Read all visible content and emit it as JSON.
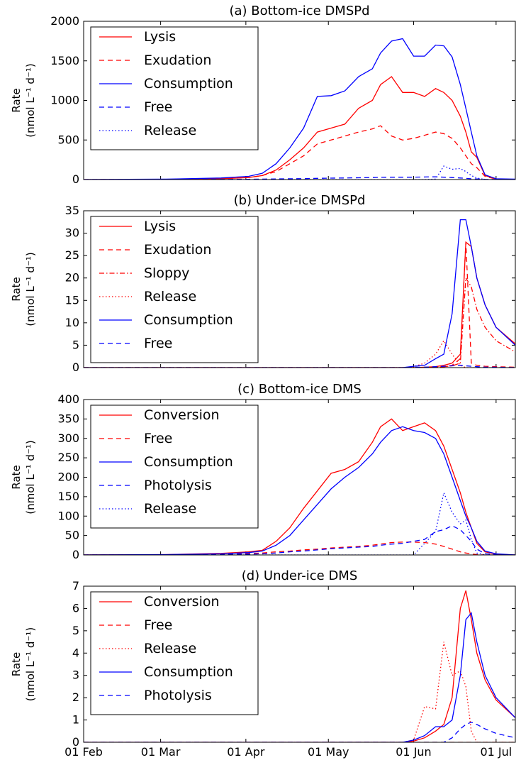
{
  "chart_data": [
    {
      "type": "line",
      "title": "(a) Bottom-ice DMSPd",
      "ylabel": [
        "Rate",
        "(nmol L⁻¹ d⁻¹)"
      ],
      "x": [
        0,
        30,
        50,
        60,
        65,
        70,
        75,
        80,
        85,
        90,
        95,
        100,
        105,
        108,
        112,
        116,
        120,
        124,
        128,
        131,
        134,
        137,
        139,
        141,
        143,
        146,
        150,
        157
      ],
      "xlim": [
        0,
        157
      ],
      "xticks": [
        0,
        28,
        59,
        89,
        120,
        150
      ],
      "ylim": [
        0,
        2000
      ],
      "yticks": [
        0,
        500,
        1000,
        1500,
        2000
      ],
      "legend": "upper left",
      "series": [
        {
          "name": "Lysis",
          "color": "#ff0000",
          "style": "solid",
          "values": [
            0,
            2,
            10,
            25,
            50,
            120,
            250,
            400,
            600,
            650,
            700,
            900,
            1000,
            1200,
            1300,
            1100,
            1100,
            1050,
            1150,
            1100,
            1000,
            800,
            600,
            350,
            280,
            50,
            5,
            2
          ]
        },
        {
          "name": "Exudation",
          "color": "#ff0000",
          "style": "dashed",
          "values": [
            0,
            2,
            10,
            25,
            50,
            100,
            200,
            300,
            450,
            500,
            550,
            600,
            640,
            680,
            550,
            500,
            520,
            560,
            600,
            580,
            520,
            400,
            300,
            200,
            150,
            40,
            5,
            2
          ]
        },
        {
          "name": "Consumption",
          "color": "#0000ff",
          "style": "solid",
          "values": [
            0,
            5,
            20,
            40,
            80,
            200,
            400,
            650,
            1050,
            1060,
            1120,
            1300,
            1400,
            1600,
            1750,
            1780,
            1560,
            1560,
            1700,
            1690,
            1550,
            1200,
            900,
            600,
            300,
            60,
            10,
            5
          ]
        },
        {
          "name": "Free",
          "color": "#0000ff",
          "style": "dashed",
          "values": [
            0,
            0,
            2,
            4,
            5,
            8,
            10,
            12,
            15,
            18,
            20,
            22,
            25,
            28,
            30,
            30,
            30,
            32,
            35,
            30,
            25,
            20,
            15,
            10,
            8,
            3,
            1,
            0
          ]
        },
        {
          "name": "Release",
          "color": "#0000ff",
          "style": "dotted",
          "values": [
            0,
            0,
            0,
            0,
            0,
            0,
            0,
            0,
            0,
            0,
            0,
            0,
            0,
            0,
            0,
            0,
            0,
            0,
            5,
            170,
            130,
            140,
            100,
            50,
            20,
            0,
            0,
            0
          ]
        }
      ]
    },
    {
      "type": "line",
      "title": "(b) Under-ice DMSPd",
      "ylabel": [
        "Rate",
        "(nmol L⁻¹ d⁻¹)"
      ],
      "x": [
        0,
        30,
        50,
        60,
        65,
        70,
        75,
        80,
        85,
        90,
        95,
        100,
        105,
        108,
        112,
        116,
        120,
        124,
        128,
        131,
        134,
        137,
        139,
        141,
        143,
        146,
        150,
        157
      ],
      "xlim": [
        0,
        157
      ],
      "xticks": [
        0,
        28,
        59,
        89,
        120,
        150
      ],
      "ylim": [
        0,
        35
      ],
      "yticks": [
        0,
        5,
        10,
        15,
        20,
        25,
        30,
        35
      ],
      "legend": "upper left",
      "series": [
        {
          "name": "Lysis",
          "color": "#ff0000",
          "style": "solid",
          "values": [
            0,
            0,
            0,
            0,
            0,
            0,
            0,
            0,
            0,
            0,
            0,
            0,
            0,
            0,
            0,
            0,
            0,
            0.1,
            0.2,
            0.5,
            1,
            3,
            28,
            27,
            20,
            14,
            9,
            5.3
          ]
        },
        {
          "name": "Exudation",
          "color": "#ff0000",
          "style": "dashed",
          "values": [
            0,
            0,
            0,
            0,
            0,
            0,
            0,
            0,
            0,
            0,
            0,
            0,
            0,
            0,
            0,
            0,
            0,
            0,
            0.1,
            0.2,
            0.5,
            2,
            28,
            1,
            0.5,
            0.3,
            0.2,
            0.1
          ]
        },
        {
          "name": "Sloppy",
          "color": "#ff0000",
          "style": "dashdot",
          "values": [
            0,
            0,
            0,
            0,
            0,
            0,
            0,
            0,
            0,
            0,
            0,
            0,
            0,
            0,
            0,
            0,
            0,
            0,
            0.1,
            0.2,
            0.4,
            1,
            20,
            18,
            13,
            9,
            6,
            3.5
          ]
        },
        {
          "name": "Release",
          "color": "#ff0000",
          "style": "dotted",
          "values": [
            0,
            0,
            0,
            0,
            0,
            0,
            0,
            0,
            0,
            0,
            0,
            0,
            0,
            0,
            0,
            0,
            0.2,
            1,
            3,
            6,
            3,
            0.5,
            0,
            0,
            0,
            0,
            0,
            0
          ]
        },
        {
          "name": "Consumption",
          "color": "#0000ff",
          "style": "solid",
          "values": [
            0,
            0,
            0,
            0,
            0,
            0,
            0,
            0,
            0,
            0,
            0,
            0,
            0,
            0,
            0,
            0,
            0.3,
            0.5,
            2,
            3,
            12,
            33,
            33,
            27,
            20,
            14,
            9,
            5
          ]
        },
        {
          "name": "Free",
          "color": "#0000ff",
          "style": "dashed",
          "values": [
            0,
            0,
            0,
            0,
            0,
            0,
            0,
            0,
            0,
            0,
            0,
            0,
            0,
            0,
            0,
            0,
            0.1,
            0.1,
            0.2,
            0.3,
            0.4,
            0.5,
            0.4,
            0.3,
            0.2,
            0.1,
            0.1,
            0
          ]
        }
      ]
    },
    {
      "type": "line",
      "title": "(c) Bottom-ice DMS",
      "ylabel": [
        "Rate",
        "(nmol L⁻¹ d⁻¹)"
      ],
      "x": [
        0,
        30,
        50,
        60,
        65,
        70,
        75,
        80,
        85,
        90,
        95,
        100,
        105,
        108,
        112,
        116,
        120,
        124,
        128,
        131,
        134,
        137,
        139,
        141,
        143,
        146,
        150,
        157
      ],
      "xlim": [
        0,
        157
      ],
      "xticks": [
        0,
        28,
        59,
        89,
        120,
        150
      ],
      "ylim": [
        0,
        400
      ],
      "yticks": [
        0,
        50,
        100,
        150,
        200,
        250,
        300,
        350,
        400
      ],
      "legend": "upper left",
      "series": [
        {
          "name": "Conversion",
          "color": "#ff0000",
          "style": "solid",
          "values": [
            0,
            1,
            4,
            8,
            12,
            35,
            70,
            120,
            165,
            210,
            220,
            240,
            290,
            330,
            350,
            320,
            330,
            340,
            320,
            280,
            220,
            160,
            110,
            70,
            30,
            8,
            2,
            0
          ]
        },
        {
          "name": "Free",
          "color": "#ff0000",
          "style": "dashed",
          "values": [
            0,
            0,
            2,
            4,
            5,
            8,
            10,
            13,
            15,
            18,
            20,
            22,
            25,
            28,
            32,
            33,
            33,
            32,
            28,
            22,
            15,
            8,
            5,
            3,
            1,
            0,
            0,
            0
          ]
        },
        {
          "name": "Consumption",
          "color": "#0000ff",
          "style": "solid",
          "values": [
            0,
            1,
            3,
            6,
            10,
            25,
            50,
            90,
            130,
            170,
            200,
            225,
            260,
            290,
            320,
            330,
            320,
            315,
            300,
            260,
            200,
            140,
            100,
            70,
            35,
            10,
            3,
            0
          ]
        },
        {
          "name": "Photolysis",
          "color": "#0000ff",
          "style": "dashed",
          "values": [
            0,
            0,
            1,
            2,
            3,
            5,
            8,
            10,
            13,
            16,
            18,
            20,
            22,
            25,
            28,
            30,
            35,
            40,
            60,
            65,
            75,
            65,
            50,
            35,
            15,
            3,
            1,
            0
          ]
        },
        {
          "name": "Release",
          "color": "#0000ff",
          "style": "dotted",
          "values": [
            0,
            0,
            0,
            0,
            0,
            0,
            0,
            0,
            0,
            0,
            0,
            0,
            0,
            0,
            0,
            0,
            0,
            30,
            60,
            160,
            110,
            80,
            90,
            40,
            5,
            0,
            0,
            0
          ]
        }
      ]
    },
    {
      "type": "line",
      "title": "(d) Under-ice DMS",
      "ylabel": [
        "Rate",
        "(nmol L⁻¹ d⁻¹)"
      ],
      "x": [
        0,
        30,
        50,
        60,
        65,
        70,
        75,
        80,
        85,
        90,
        95,
        100,
        105,
        108,
        112,
        116,
        120,
        124,
        128,
        131,
        134,
        137,
        139,
        141,
        143,
        146,
        150,
        157
      ],
      "xlim": [
        0,
        157
      ],
      "xticks": [
        {
          "value": 0,
          "label": "01 Feb"
        },
        {
          "value": 28,
          "label": "01 Mar"
        },
        {
          "value": 59,
          "label": "01 Apr"
        },
        {
          "value": 89,
          "label": "01 May"
        },
        {
          "value": 120,
          "label": "01 Jun"
        },
        {
          "value": 150,
          "label": "01 Jul"
        }
      ],
      "ylim": [
        0,
        7
      ],
      "yticks": [
        0,
        1,
        2,
        3,
        4,
        5,
        6,
        7
      ],
      "legend": "upper left",
      "series": [
        {
          "name": "Conversion",
          "color": "#ff0000",
          "style": "solid",
          "values": [
            0,
            0,
            0,
            0,
            0,
            0,
            0,
            0,
            0,
            0,
            0,
            0,
            0,
            0,
            0,
            0,
            0.05,
            0.2,
            0.5,
            0.8,
            2,
            6,
            6.8,
            5.5,
            4,
            2.8,
            1.9,
            1.1
          ]
        },
        {
          "name": "Free",
          "color": "#ff0000",
          "style": "dashed",
          "values": [
            0,
            0,
            0,
            0,
            0,
            0,
            0,
            0,
            0,
            0,
            0,
            0,
            0,
            0,
            0,
            0,
            0,
            0,
            0,
            0,
            0,
            0,
            0,
            0,
            0,
            0,
            0,
            0
          ]
        },
        {
          "name": "Release",
          "color": "#ff0000",
          "style": "dotted",
          "values": [
            0,
            0,
            0,
            0,
            0,
            0,
            0,
            0,
            0,
            0,
            0,
            0,
            0,
            0,
            0,
            0,
            0.1,
            1.6,
            1.5,
            4.5,
            3,
            3.2,
            2.5,
            0.5,
            0,
            0,
            0,
            0
          ]
        },
        {
          "name": "Consumption",
          "color": "#0000ff",
          "style": "solid",
          "values": [
            0,
            0,
            0,
            0,
            0,
            0,
            0,
            0,
            0,
            0,
            0,
            0,
            0,
            0,
            0,
            0,
            0.1,
            0.3,
            0.7,
            0.7,
            1,
            3,
            5.5,
            5.8,
            4.5,
            3,
            2,
            1.1
          ]
        },
        {
          "name": "Photolysis",
          "color": "#0000ff",
          "style": "dashed",
          "values": [
            0,
            0,
            0,
            0,
            0,
            0,
            0,
            0,
            0,
            0,
            0,
            0,
            0,
            0,
            0,
            0,
            0,
            0,
            0,
            0,
            0.2,
            0.6,
            0.8,
            0.9,
            0.8,
            0.6,
            0.4,
            0.2
          ]
        }
      ]
    }
  ]
}
